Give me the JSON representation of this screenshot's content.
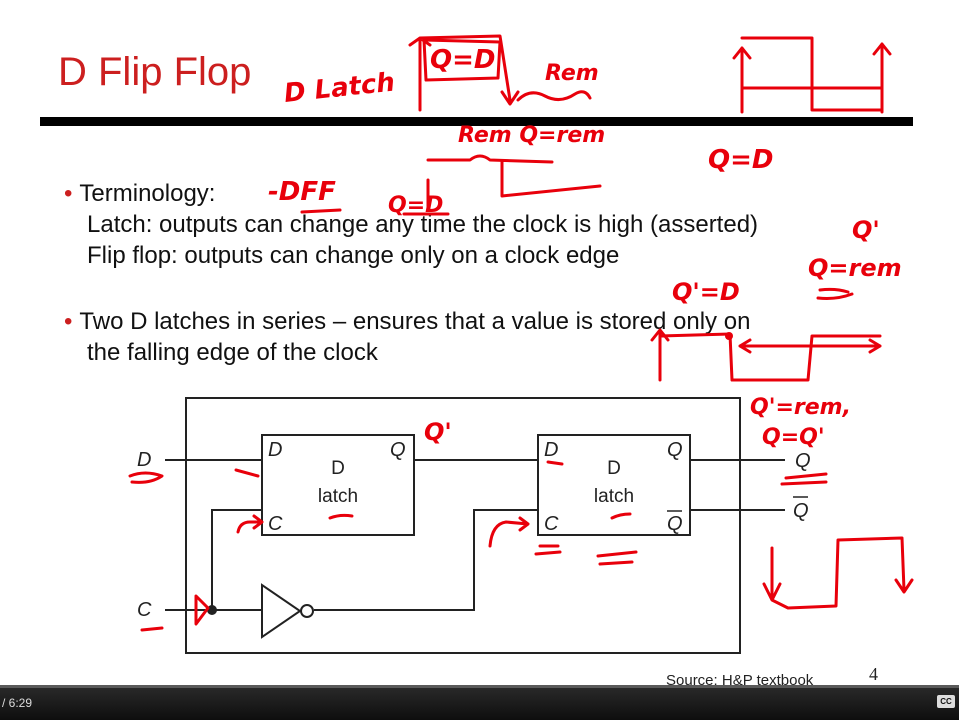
{
  "slide": {
    "title": "D Flip Flop",
    "bullet_marker": "•",
    "bullets": [
      {
        "heading": "Terminology:",
        "lines": [
          "Latch: outputs can change any time the clock is high (asserted)",
          "Flip flop: outputs can change only on a clock edge"
        ]
      },
      {
        "heading": "Two D latches in series – ensures that a value is stored only on",
        "lines": [
          "the falling edge of the clock"
        ]
      }
    ],
    "source": "Source: H&P textbook",
    "page_number": "4"
  },
  "circuit": {
    "input_d": "D",
    "input_c": "C",
    "output_q": "Q",
    "output_qbar": "Q",
    "latch1": {
      "pin_d": "D",
      "pin_c": "C",
      "pin_q": "Q",
      "name_line1": "D",
      "name_line2": "latch"
    },
    "latch2": {
      "pin_d": "D",
      "pin_c": "C",
      "pin_q": "Q",
      "pin_qbar": "Q",
      "name_line1": "D",
      "name_line2": "latch"
    }
  },
  "annotations": {
    "d_latch": "D Latch",
    "q_eq_d_top": "Q=D",
    "rem_top": "Rem",
    "rem_q_eq_rem": "Rem Q=rem",
    "q_eq_d_right": "Q=D",
    "dff": "-DFF",
    "q_eq_d_mid": "Q=D",
    "q_prime_right": "Q'",
    "q_eq_rem_right": "Q=rem",
    "qp_eq_d": "Q'=D",
    "q_prime_latch": "Q'",
    "qp_eq_rem": "Q'=rem,",
    "q_eq_qp": "Q=Q'"
  },
  "player": {
    "time": "/ 6:29",
    "progress": 0.0,
    "cc_label": "CC"
  },
  "colors": {
    "title": "#cc1f1f",
    "ink": "#e8000b",
    "player_bar": "#1a1a1a"
  }
}
